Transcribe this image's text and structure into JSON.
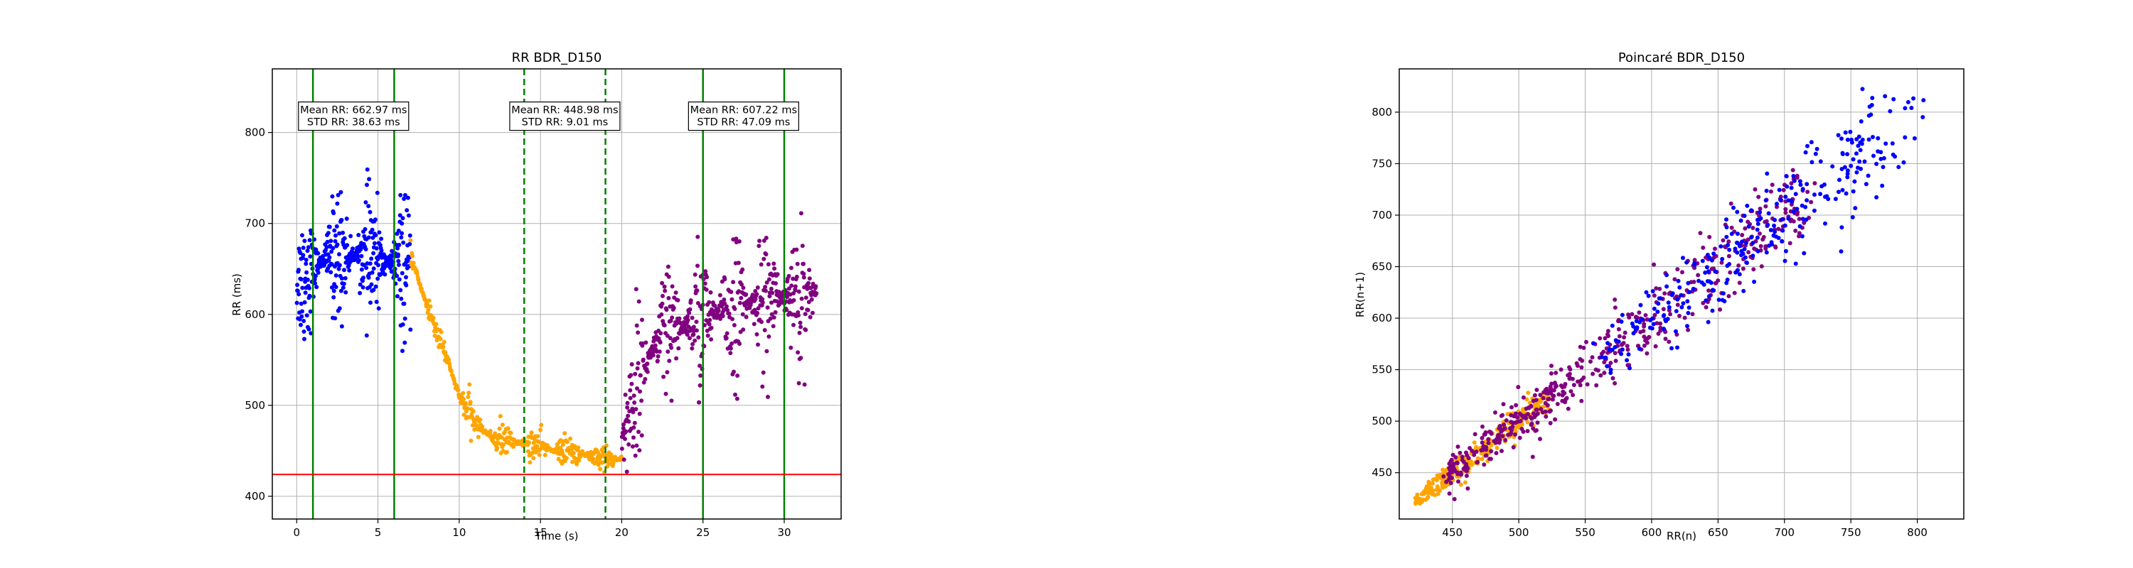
{
  "chart_data": [
    {
      "type": "scatter",
      "title": "RR BDR_D150",
      "xlabel": "Time (s)",
      "ylabel": "RR (ms)",
      "xlim": [
        -1.5,
        33.5
      ],
      "ylim": [
        375,
        870
      ],
      "xticks": [
        0,
        5,
        10,
        15,
        20,
        25,
        30
      ],
      "yticks": [
        400,
        500,
        600,
        700,
        800
      ],
      "grid": true,
      "colors": {
        "seg1": "#0000ff",
        "seg2": "#ffa500",
        "seg3": "#800080",
        "solid_vline": "#008000",
        "dashed_vline": "#008000",
        "hline": "#ff0000"
      },
      "solid_vlines": [
        1,
        6,
        25,
        30
      ],
      "dashed_vlines": [
        14,
        19
      ],
      "hline": 424,
      "annotations": [
        {
          "x": 3.5,
          "y": 818,
          "lines": [
            "Mean RR: 662.97 ms",
            "STD RR: 38.63 ms"
          ]
        },
        {
          "x": 16.5,
          "y": 818,
          "lines": [
            "Mean RR: 448.98 ms",
            "STD RR: 9.01 ms"
          ]
        },
        {
          "x": 27.5,
          "y": 818,
          "lines": [
            "Mean RR: 607.22 ms",
            "STD RR: 47.09 ms"
          ]
        }
      ],
      "segments": [
        {
          "t_start": 0.0,
          "t_end": 7.0,
          "n": 420,
          "trend": [
            [
              0,
              635
            ],
            [
              2,
              665
            ],
            [
              4,
              665
            ],
            [
              6,
              655
            ],
            [
              7,
              650
            ]
          ],
          "spread": 30,
          "color_key": "seg1"
        },
        {
          "t_start": 7.0,
          "t_end": 20.0,
          "n": 480,
          "trend": [
            [
              7,
              665
            ],
            [
              8,
              610
            ],
            [
              9,
              565
            ],
            [
              10,
              510
            ],
            [
              11,
              480
            ],
            [
              12,
              465
            ],
            [
              14,
              458
            ],
            [
              16,
              450
            ],
            [
              18,
              445
            ],
            [
              19,
              443
            ],
            [
              20,
              440
            ]
          ],
          "spread": 8,
          "color_key": "seg2"
        },
        {
          "t_start": 20.0,
          "t_end": 32.0,
          "n": 560,
          "trend": [
            [
              20,
              460
            ],
            [
              21,
              530
            ],
            [
              22,
              565
            ],
            [
              23,
              575
            ],
            [
              24,
              590
            ],
            [
              25,
              595
            ],
            [
              27,
              610
            ],
            [
              29,
              615
            ],
            [
              31,
              620
            ],
            [
              32,
              625
            ]
          ],
          "spread": 35,
          "color_key": "seg3"
        }
      ]
    },
    {
      "type": "scatter",
      "title": "Poincaré BDR_D150",
      "xlabel": "RR(n)",
      "ylabel": "RR(n+1)",
      "xlim": [
        410,
        835
      ],
      "ylim": [
        405,
        842
      ],
      "xticks": [
        450,
        500,
        550,
        600,
        650,
        700,
        750,
        800
      ],
      "yticks": [
        450,
        500,
        550,
        600,
        650,
        700,
        750,
        800
      ],
      "grid": true,
      "colors": {
        "seg1": "#0000ff",
        "seg2": "#ffa500",
        "seg3": "#800080"
      },
      "clusters": [
        {
          "color_key": "seg2",
          "n": 300,
          "x_min": 422,
          "x_max": 520,
          "spread": 6
        },
        {
          "color_key": "seg3",
          "n": 520,
          "x_min": 445,
          "x_max": 720,
          "spread": 14
        },
        {
          "color_key": "seg1",
          "n": 300,
          "x_min": 560,
          "x_max": 790,
          "spread": 20
        }
      ]
    }
  ]
}
